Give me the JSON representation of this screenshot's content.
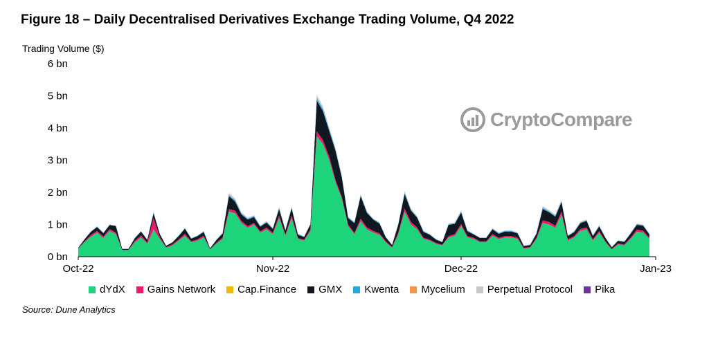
{
  "title": "Figure 18 – Daily Decentralised Derivatives Exchange Trading Volume, Q4 2022",
  "source": "Source: Dune Analytics",
  "watermark": "CryptoCompare",
  "chart_data": {
    "type": "area",
    "stacked": true,
    "ylabel": "Trading Volume ($)",
    "ylim": [
      0,
      6
    ],
    "yticks": [
      "0 bn",
      "1 bn",
      "2 bn",
      "3 bn",
      "4 bn",
      "5 bn",
      "6 bn"
    ],
    "xticks": [
      "Oct-22",
      "Nov-22",
      "Dec-22",
      "Jan-23"
    ],
    "xlim": [
      "2022-10-01",
      "2023-01-01"
    ],
    "grid": false,
    "legend_position": "bottom",
    "x": [
      "2022-10-01",
      "2022-10-02",
      "2022-10-03",
      "2022-10-04",
      "2022-10-05",
      "2022-10-06",
      "2022-10-07",
      "2022-10-08",
      "2022-10-09",
      "2022-10-10",
      "2022-10-11",
      "2022-10-12",
      "2022-10-13",
      "2022-10-14",
      "2022-10-15",
      "2022-10-16",
      "2022-10-17",
      "2022-10-18",
      "2022-10-19",
      "2022-10-20",
      "2022-10-21",
      "2022-10-22",
      "2022-10-23",
      "2022-10-24",
      "2022-10-25",
      "2022-10-26",
      "2022-10-27",
      "2022-10-28",
      "2022-10-29",
      "2022-10-30",
      "2022-10-31",
      "2022-11-01",
      "2022-11-02",
      "2022-11-03",
      "2022-11-04",
      "2022-11-05",
      "2022-11-06",
      "2022-11-07",
      "2022-11-08",
      "2022-11-09",
      "2022-11-10",
      "2022-11-11",
      "2022-11-12",
      "2022-11-13",
      "2022-11-14",
      "2022-11-15",
      "2022-11-16",
      "2022-11-17",
      "2022-11-18",
      "2022-11-19",
      "2022-11-20",
      "2022-11-21",
      "2022-11-22",
      "2022-11-23",
      "2022-11-24",
      "2022-11-25",
      "2022-11-26",
      "2022-11-27",
      "2022-11-28",
      "2022-11-29",
      "2022-11-30",
      "2022-12-01",
      "2022-12-02",
      "2022-12-03",
      "2022-12-04",
      "2022-12-05",
      "2022-12-06",
      "2022-12-07",
      "2022-12-08",
      "2022-12-09",
      "2022-12-10",
      "2022-12-11",
      "2022-12-12",
      "2022-12-13",
      "2022-12-14",
      "2022-12-15",
      "2022-12-16",
      "2022-12-17",
      "2022-12-18",
      "2022-12-19",
      "2022-12-20",
      "2022-12-21",
      "2022-12-22",
      "2022-12-23",
      "2022-12-24",
      "2022-12-25",
      "2022-12-26",
      "2022-12-27",
      "2022-12-28",
      "2022-12-29",
      "2022-12-30",
      "2022-12-31"
    ],
    "series": [
      {
        "name": "dYdX",
        "color": "#1ed47a",
        "values": [
          0.25,
          0.45,
          0.62,
          0.75,
          0.58,
          0.8,
          0.7,
          0.2,
          0.2,
          0.45,
          0.6,
          0.4,
          0.85,
          0.55,
          0.28,
          0.35,
          0.5,
          0.65,
          0.45,
          0.5,
          0.6,
          0.22,
          0.4,
          0.55,
          1.4,
          1.35,
          1.05,
          0.9,
          1.0,
          0.75,
          0.85,
          0.7,
          1.2,
          0.65,
          1.2,
          0.55,
          0.5,
          0.8,
          3.75,
          3.5,
          3.0,
          2.3,
          1.8,
          0.95,
          0.7,
          1.1,
          0.85,
          0.75,
          0.68,
          0.45,
          0.28,
          0.7,
          1.4,
          1.0,
          0.85,
          0.55,
          0.5,
          0.4,
          0.35,
          0.6,
          0.65,
          0.95,
          0.6,
          0.55,
          0.45,
          0.45,
          0.65,
          0.55,
          0.6,
          0.6,
          0.55,
          0.25,
          0.28,
          0.55,
          1.05,
          1.0,
          0.9,
          1.3,
          0.5,
          0.6,
          0.8,
          0.85,
          0.5,
          0.75,
          0.45,
          0.22,
          0.38,
          0.35,
          0.55,
          0.78,
          0.75,
          0.55
        ]
      },
      {
        "name": "Gains Network",
        "color": "#f0186c",
        "values": [
          0.01,
          0.03,
          0.05,
          0.05,
          0.05,
          0.06,
          0.05,
          0.01,
          0.01,
          0.04,
          0.06,
          0.04,
          0.35,
          0.05,
          0.02,
          0.03,
          0.04,
          0.06,
          0.03,
          0.04,
          0.05,
          0.01,
          0.03,
          0.05,
          0.08,
          0.08,
          0.06,
          0.05,
          0.05,
          0.04,
          0.06,
          0.04,
          0.08,
          0.04,
          0.08,
          0.03,
          0.03,
          0.05,
          0.15,
          0.12,
          0.1,
          0.08,
          0.06,
          0.05,
          0.04,
          0.08,
          0.06,
          0.05,
          0.05,
          0.03,
          0.02,
          0.05,
          0.1,
          0.08,
          0.06,
          0.04,
          0.03,
          0.03,
          0.02,
          0.04,
          0.05,
          0.07,
          0.04,
          0.04,
          0.03,
          0.03,
          0.05,
          0.04,
          0.04,
          0.04,
          0.04,
          0.02,
          0.02,
          0.04,
          0.08,
          0.08,
          0.06,
          0.1,
          0.04,
          0.04,
          0.06,
          0.06,
          0.04,
          0.05,
          0.03,
          0.02,
          0.03,
          0.03,
          0.04,
          0.06,
          0.06,
          0.04
        ]
      },
      {
        "name": "Cap.Finance",
        "color": "#f5b800",
        "values": [
          0.0,
          0.0,
          0.0,
          0.0,
          0.0,
          0.0,
          0.0,
          0.0,
          0.0,
          0.0,
          0.0,
          0.0,
          0.0,
          0.0,
          0.0,
          0.0,
          0.0,
          0.0,
          0.0,
          0.0,
          0.0,
          0.0,
          0.0,
          0.0,
          0.0,
          0.0,
          0.0,
          0.0,
          0.0,
          0.0,
          0.0,
          0.0,
          0.0,
          0.0,
          0.0,
          0.0,
          0.0,
          0.0,
          0.0,
          0.0,
          0.0,
          0.0,
          0.0,
          0.0,
          0.0,
          0.0,
          0.0,
          0.0,
          0.0,
          0.0,
          0.0,
          0.0,
          0.0,
          0.0,
          0.0,
          0.0,
          0.0,
          0.0,
          0.0,
          0.0,
          0.0,
          0.0,
          0.0,
          0.0,
          0.0,
          0.0,
          0.0,
          0.0,
          0.0,
          0.0,
          0.0,
          0.0,
          0.0,
          0.0,
          0.0,
          0.0,
          0.0,
          0.0,
          0.0,
          0.0,
          0.0,
          0.0,
          0.0,
          0.0,
          0.0,
          0.0,
          0.0,
          0.0,
          0.0,
          0.0,
          0.0,
          0.0
        ]
      },
      {
        "name": "GMX",
        "color": "#0f1720",
        "values": [
          0.02,
          0.06,
          0.1,
          0.12,
          0.1,
          0.12,
          0.2,
          0.03,
          0.03,
          0.08,
          0.12,
          0.08,
          0.15,
          0.1,
          0.04,
          0.06,
          0.1,
          0.16,
          0.08,
          0.1,
          0.12,
          0.03,
          0.08,
          0.12,
          0.4,
          0.28,
          0.2,
          0.2,
          0.18,
          0.14,
          0.15,
          0.12,
          0.2,
          0.12,
          0.22,
          0.1,
          0.08,
          0.15,
          0.95,
          0.9,
          0.8,
          0.9,
          0.6,
          0.2,
          0.3,
          0.7,
          0.45,
          0.35,
          0.3,
          0.12,
          0.06,
          0.25,
          0.45,
          0.35,
          0.3,
          0.18,
          0.15,
          0.1,
          0.08,
          0.35,
          0.32,
          0.35,
          0.15,
          0.1,
          0.1,
          0.1,
          0.15,
          0.12,
          0.14,
          0.14,
          0.13,
          0.06,
          0.06,
          0.12,
          0.35,
          0.3,
          0.28,
          0.3,
          0.1,
          0.12,
          0.18,
          0.2,
          0.1,
          0.14,
          0.1,
          0.05,
          0.08,
          0.08,
          0.12,
          0.15,
          0.15,
          0.1
        ]
      },
      {
        "name": "Kwenta",
        "color": "#2aa6e0",
        "values": [
          0.0,
          0.0,
          0.01,
          0.01,
          0.01,
          0.01,
          0.01,
          0.0,
          0.0,
          0.01,
          0.01,
          0.01,
          0.02,
          0.01,
          0.0,
          0.01,
          0.01,
          0.01,
          0.01,
          0.01,
          0.01,
          0.0,
          0.01,
          0.01,
          0.04,
          0.04,
          0.03,
          0.03,
          0.03,
          0.02,
          0.02,
          0.02,
          0.03,
          0.02,
          0.03,
          0.02,
          0.01,
          0.02,
          0.08,
          0.06,
          0.05,
          0.04,
          0.03,
          0.02,
          0.02,
          0.03,
          0.02,
          0.02,
          0.02,
          0.01,
          0.01,
          0.02,
          0.04,
          0.03,
          0.02,
          0.02,
          0.01,
          0.01,
          0.01,
          0.02,
          0.02,
          0.03,
          0.02,
          0.01,
          0.01,
          0.01,
          0.02,
          0.02,
          0.02,
          0.02,
          0.02,
          0.01,
          0.01,
          0.02,
          0.04,
          0.03,
          0.03,
          0.03,
          0.01,
          0.02,
          0.02,
          0.02,
          0.01,
          0.02,
          0.01,
          0.01,
          0.01,
          0.01,
          0.02,
          0.02,
          0.02,
          0.01
        ]
      },
      {
        "name": "Mycelium",
        "color": "#f7944a",
        "values": [
          0.0,
          0.0,
          0.0,
          0.0,
          0.0,
          0.0,
          0.0,
          0.0,
          0.0,
          0.0,
          0.0,
          0.0,
          0.0,
          0.0,
          0.0,
          0.0,
          0.0,
          0.0,
          0.0,
          0.0,
          0.0,
          0.0,
          0.0,
          0.0,
          0.0,
          0.0,
          0.0,
          0.0,
          0.0,
          0.0,
          0.0,
          0.0,
          0.0,
          0.0,
          0.0,
          0.0,
          0.0,
          0.0,
          0.0,
          0.0,
          0.0,
          0.0,
          0.0,
          0.0,
          0.0,
          0.0,
          0.0,
          0.0,
          0.0,
          0.0,
          0.0,
          0.0,
          0.0,
          0.0,
          0.0,
          0.0,
          0.0,
          0.0,
          0.0,
          0.0,
          0.0,
          0.0,
          0.0,
          0.0,
          0.0,
          0.0,
          0.0,
          0.0,
          0.0,
          0.0,
          0.0,
          0.0,
          0.0,
          0.0,
          0.0,
          0.0,
          0.0,
          0.0,
          0.0,
          0.0,
          0.0,
          0.0,
          0.0,
          0.0,
          0.0,
          0.0,
          0.0,
          0.0,
          0.0,
          0.0,
          0.0,
          0.0
        ]
      },
      {
        "name": "Perpetual Protocol",
        "color": "#c8c8c8",
        "values": [
          0.0,
          0.01,
          0.01,
          0.02,
          0.01,
          0.02,
          0.01,
          0.0,
          0.0,
          0.01,
          0.01,
          0.01,
          0.03,
          0.01,
          0.01,
          0.01,
          0.01,
          0.02,
          0.01,
          0.01,
          0.02,
          0.0,
          0.01,
          0.02,
          0.06,
          0.05,
          0.04,
          0.03,
          0.03,
          0.02,
          0.03,
          0.02,
          0.04,
          0.02,
          0.04,
          0.02,
          0.02,
          0.03,
          0.1,
          0.08,
          0.06,
          0.05,
          0.04,
          0.03,
          0.02,
          0.04,
          0.03,
          0.02,
          0.02,
          0.01,
          0.01,
          0.02,
          0.05,
          0.04,
          0.03,
          0.02,
          0.02,
          0.01,
          0.01,
          0.02,
          0.03,
          0.04,
          0.02,
          0.02,
          0.01,
          0.01,
          0.02,
          0.02,
          0.02,
          0.02,
          0.02,
          0.01,
          0.01,
          0.02,
          0.05,
          0.04,
          0.04,
          0.04,
          0.02,
          0.02,
          0.03,
          0.03,
          0.02,
          0.02,
          0.01,
          0.01,
          0.01,
          0.01,
          0.02,
          0.02,
          0.02,
          0.02
        ]
      },
      {
        "name": "Pika",
        "color": "#7030a0",
        "values": [
          0.0,
          0.0,
          0.0,
          0.0,
          0.0,
          0.0,
          0.0,
          0.0,
          0.0,
          0.0,
          0.0,
          0.0,
          0.0,
          0.0,
          0.0,
          0.0,
          0.0,
          0.0,
          0.0,
          0.0,
          0.0,
          0.0,
          0.0,
          0.0,
          0.0,
          0.0,
          0.0,
          0.0,
          0.0,
          0.0,
          0.0,
          0.0,
          0.0,
          0.0,
          0.0,
          0.0,
          0.0,
          0.0,
          0.0,
          0.0,
          0.0,
          0.0,
          0.0,
          0.0,
          0.0,
          0.0,
          0.0,
          0.0,
          0.0,
          0.0,
          0.0,
          0.0,
          0.0,
          0.0,
          0.0,
          0.0,
          0.0,
          0.0,
          0.0,
          0.0,
          0.0,
          0.0,
          0.0,
          0.0,
          0.0,
          0.0,
          0.0,
          0.0,
          0.0,
          0.0,
          0.0,
          0.0,
          0.0,
          0.0,
          0.0,
          0.0,
          0.0,
          0.0,
          0.0,
          0.0,
          0.0,
          0.0,
          0.0,
          0.0,
          0.0,
          0.0,
          0.0,
          0.0,
          0.0,
          0.0,
          0.0,
          0.0
        ]
      }
    ]
  }
}
